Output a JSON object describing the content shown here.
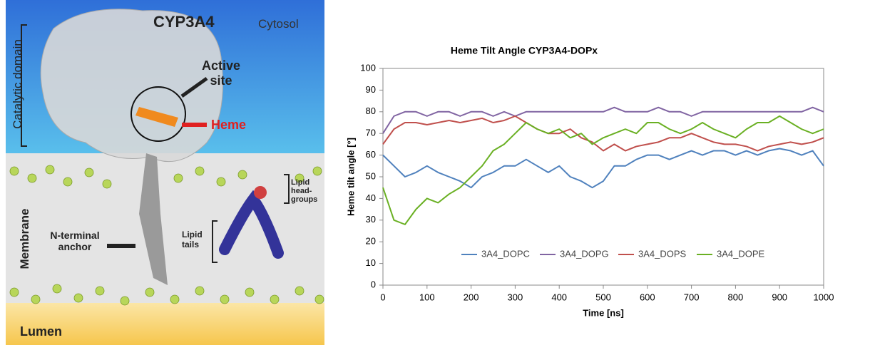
{
  "illustration": {
    "labels": {
      "protein": "CYP3A4",
      "cytosol": "Cytosol",
      "catalytic_domain": "Catalytic domain",
      "active_site": "Active site",
      "heme": "Heme",
      "membrane": "Membrane",
      "anchor": "N-terminal anchor",
      "head_groups": "Lipid head-groups",
      "tails": "Lipid tails",
      "lumen": "Lumen"
    }
  },
  "chart_data": {
    "type": "line",
    "title": "Heme Tilt Angle  CYP3A4-DOPx",
    "x_label": "Time [ns]",
    "y_label": "Heme tilt angle [°]",
    "x": [
      0,
      25,
      50,
      75,
      100,
      125,
      150,
      175,
      200,
      225,
      250,
      275,
      300,
      325,
      350,
      375,
      400,
      425,
      450,
      475,
      500,
      525,
      550,
      575,
      600,
      625,
      650,
      675,
      700,
      725,
      750,
      775,
      800,
      825,
      850,
      875,
      900,
      925,
      950,
      975,
      1000
    ],
    "series": [
      {
        "name": "3A4_DOPC",
        "color": "#4f81bd",
        "values": [
          60,
          55,
          50,
          52,
          55,
          52,
          50,
          48,
          45,
          50,
          52,
          55,
          55,
          58,
          55,
          52,
          55,
          50,
          48,
          45,
          48,
          55,
          55,
          58,
          60,
          60,
          58,
          60,
          62,
          60,
          62,
          62,
          60,
          62,
          60,
          62,
          63,
          62,
          60,
          62,
          55
        ]
      },
      {
        "name": "3A4_DOPG",
        "color": "#8064a2",
        "values": [
          70,
          78,
          80,
          80,
          78,
          80,
          80,
          78,
          80,
          80,
          78,
          80,
          78,
          80,
          80,
          80,
          80,
          80,
          80,
          80,
          80,
          82,
          80,
          80,
          80,
          82,
          80,
          80,
          78,
          80,
          80,
          80,
          80,
          80,
          80,
          80,
          80,
          80,
          80,
          82,
          80
        ]
      },
      {
        "name": "3A4_DOPS",
        "color": "#c0504d",
        "values": [
          65,
          72,
          75,
          75,
          74,
          75,
          76,
          75,
          76,
          77,
          75,
          76,
          78,
          75,
          72,
          70,
          70,
          72,
          68,
          66,
          62,
          65,
          62,
          64,
          65,
          66,
          68,
          68,
          70,
          68,
          66,
          65,
          65,
          64,
          62,
          64,
          65,
          66,
          65,
          66,
          68
        ]
      },
      {
        "name": "3A4_DOPE",
        "color": "#6ab023",
        "values": [
          45,
          30,
          28,
          35,
          40,
          38,
          42,
          45,
          50,
          55,
          62,
          65,
          70,
          75,
          72,
          70,
          72,
          68,
          70,
          65,
          68,
          70,
          72,
          70,
          75,
          75,
          72,
          70,
          72,
          75,
          72,
          70,
          68,
          72,
          75,
          75,
          78,
          75,
          72,
          70,
          72
        ]
      }
    ],
    "xlim": [
      0,
      1000
    ],
    "xticks": [
      0,
      100,
      200,
      300,
      400,
      500,
      600,
      700,
      800,
      900,
      1000
    ],
    "ylim": [
      0,
      100
    ],
    "yticks": [
      0,
      10,
      20,
      30,
      40,
      50,
      60,
      70,
      80,
      90,
      100
    ],
    "grid": false,
    "legend": "bottom"
  }
}
